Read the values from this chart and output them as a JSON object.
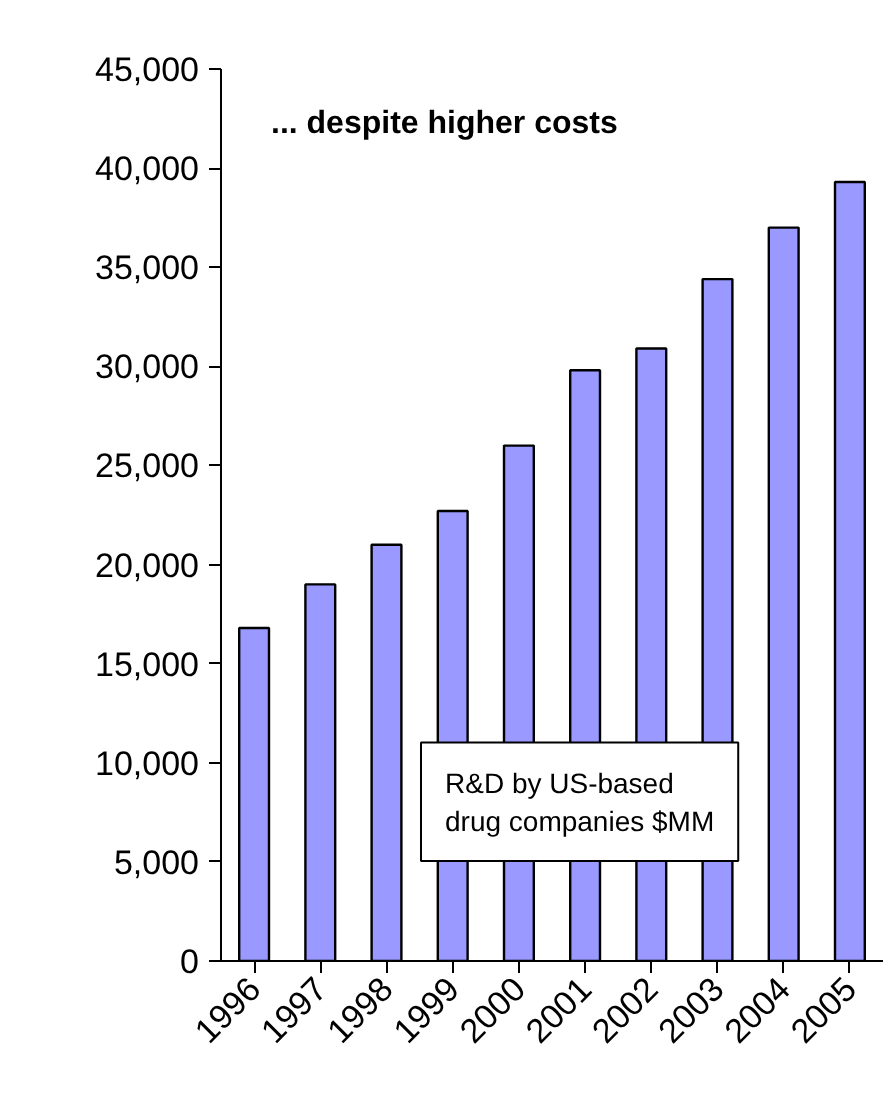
{
  "chart_data": {
    "type": "bar",
    "title": "... despite higher costs",
    "categories": [
      "1996",
      "1997",
      "1998",
      "1999",
      "2000",
      "2001",
      "2002",
      "2003",
      "2004",
      "2005"
    ],
    "values": [
      16800,
      19000,
      21000,
      22700,
      26000,
      29800,
      30900,
      34400,
      37000,
      39300
    ],
    "color": "#9999ff",
    "ylim": [
      0,
      45000
    ],
    "yticks": [
      {
        "value": 0,
        "label": "0"
      },
      {
        "value": 5000,
        "label": "5,000"
      },
      {
        "value": 10000,
        "label": "10,000"
      },
      {
        "value": 15000,
        "label": "15,000"
      },
      {
        "value": 20000,
        "label": "20,000"
      },
      {
        "value": 25000,
        "label": "25,000"
      },
      {
        "value": 30000,
        "label": "30,000"
      },
      {
        "value": 35000,
        "label": "35,000"
      },
      {
        "value": 40000,
        "label": "40,000"
      },
      {
        "value": 45000,
        "label": "45,000"
      }
    ],
    "annotations": [
      "R&D by US-based\ndrug companies $MM"
    ],
    "grid": false
  }
}
